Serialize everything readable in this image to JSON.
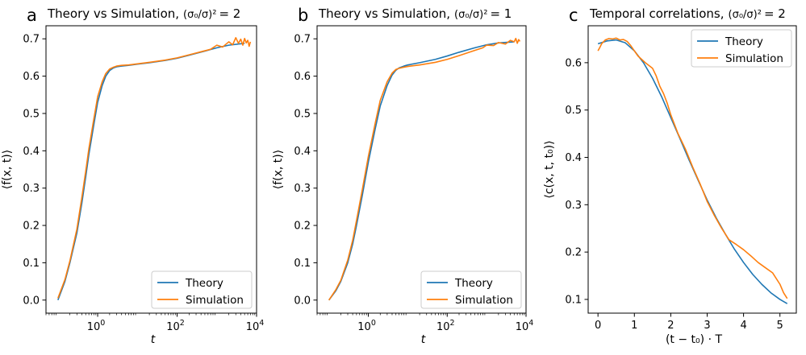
{
  "figure": {
    "colors": {
      "theory": "#1f77b4",
      "simulation": "#ff7f0e"
    }
  },
  "chart_data": [
    {
      "type": "line",
      "panel_letter": "a",
      "title_text": "Theory vs Simulation,",
      "title_math_lhs": "(σ₀/σ)²",
      "title_math_rhs": "= 2",
      "xlabel": "t",
      "ylabel": "⟨f(x, t)⟩",
      "xscale": "log",
      "xlim": [
        0.05,
        10000
      ],
      "ylim": [
        -0.035,
        0.735
      ],
      "x_ticks": [
        1,
        100,
        10000
      ],
      "x_tick_labels": [
        [
          "10",
          "0"
        ],
        [
          "10",
          "2"
        ],
        [
          "10",
          "4"
        ]
      ],
      "y_ticks": [
        0.0,
        0.1,
        0.2,
        0.3,
        0.4,
        0.5,
        0.6,
        0.7
      ],
      "y_tick_labels": [
        "0.0",
        "0.1",
        "0.2",
        "0.3",
        "0.4",
        "0.5",
        "0.6",
        "0.7"
      ],
      "legend": {
        "location": "lower right",
        "entries": [
          "Theory",
          "Simulation"
        ]
      },
      "series": [
        {
          "name": "Theory",
          "x": [
            0.1,
            0.15,
            0.2,
            0.3,
            0.4,
            0.5,
            0.6,
            0.8,
            1.0,
            1.3,
            1.6,
            2,
            2.5,
            3,
            4,
            6,
            10,
            20,
            50,
            100,
            200,
            500,
            1000,
            2000,
            5000
          ],
          "y": [
            0.0,
            0.05,
            0.1,
            0.18,
            0.26,
            0.33,
            0.39,
            0.47,
            0.53,
            0.575,
            0.6,
            0.615,
            0.622,
            0.625,
            0.627,
            0.629,
            0.632,
            0.636,
            0.642,
            0.648,
            0.656,
            0.667,
            0.676,
            0.683,
            0.688
          ]
        },
        {
          "name": "Simulation",
          "x": [
            0.1,
            0.15,
            0.2,
            0.3,
            0.4,
            0.5,
            0.6,
            0.8,
            1.0,
            1.3,
            1.6,
            2,
            2.5,
            3,
            4,
            6,
            10,
            20,
            50,
            100,
            200,
            500,
            700,
            1000,
            1400,
            2000,
            2500,
            3000,
            3500,
            4000,
            4500,
            5000,
            5500,
            6000,
            6500,
            7000
          ],
          "y": [
            0.005,
            0.055,
            0.105,
            0.19,
            0.275,
            0.345,
            0.405,
            0.485,
            0.545,
            0.585,
            0.607,
            0.619,
            0.624,
            0.627,
            0.629,
            0.63,
            0.633,
            0.637,
            0.643,
            0.649,
            0.657,
            0.668,
            0.672,
            0.683,
            0.678,
            0.692,
            0.684,
            0.703,
            0.688,
            0.699,
            0.683,
            0.701,
            0.689,
            0.696,
            0.68,
            0.692
          ]
        }
      ]
    },
    {
      "type": "line",
      "panel_letter": "b",
      "title_text": "Theory vs Simulation,",
      "title_math_lhs": "(σ₀/σ)²",
      "title_math_rhs": "= 1",
      "xlabel": "t",
      "ylabel": "⟨f(x, t)⟩",
      "xscale": "log",
      "xlim": [
        0.05,
        10000
      ],
      "ylim": [
        -0.035,
        0.735
      ],
      "x_ticks": [
        1,
        100,
        10000
      ],
      "x_tick_labels": [
        [
          "10",
          "0"
        ],
        [
          "10",
          "2"
        ],
        [
          "10",
          "4"
        ]
      ],
      "y_ticks": [
        0.0,
        0.1,
        0.2,
        0.3,
        0.4,
        0.5,
        0.6,
        0.7
      ],
      "y_tick_labels": [
        "0.0",
        "0.1",
        "0.2",
        "0.3",
        "0.4",
        "0.5",
        "0.6",
        "0.7"
      ],
      "legend": {
        "location": "lower right",
        "entries": [
          "Theory",
          "Simulation"
        ]
      },
      "series": [
        {
          "name": "Theory",
          "x": [
            0.1,
            0.15,
            0.2,
            0.3,
            0.4,
            0.5,
            0.7,
            1.0,
            1.5,
            2,
            3,
            4,
            5,
            6,
            8,
            10,
            20,
            50,
            100,
            200,
            500,
            1000,
            2000,
            5000
          ],
          "y": [
            0.0,
            0.025,
            0.05,
            0.1,
            0.15,
            0.2,
            0.28,
            0.37,
            0.46,
            0.52,
            0.575,
            0.603,
            0.616,
            0.622,
            0.627,
            0.63,
            0.636,
            0.645,
            0.654,
            0.664,
            0.676,
            0.684,
            0.689,
            0.692
          ]
        },
        {
          "name": "Simulation",
          "x": [
            0.1,
            0.15,
            0.2,
            0.3,
            0.4,
            0.5,
            0.7,
            1.0,
            1.5,
            2,
            3,
            4,
            5,
            6,
            8,
            10,
            20,
            50,
            100,
            200,
            500,
            800,
            1000,
            1500,
            2000,
            3000,
            4000,
            5000,
            5500,
            6000,
            6500,
            7000
          ],
          "y": [
            0.0,
            0.028,
            0.053,
            0.107,
            0.16,
            0.213,
            0.295,
            0.385,
            0.475,
            0.535,
            0.585,
            0.608,
            0.618,
            0.621,
            0.624,
            0.626,
            0.63,
            0.637,
            0.645,
            0.655,
            0.669,
            0.676,
            0.683,
            0.682,
            0.69,
            0.686,
            0.696,
            0.692,
            0.701,
            0.688,
            0.698,
            0.693
          ]
        }
      ]
    },
    {
      "type": "line",
      "panel_letter": "c",
      "title_text": "Temporal correlations,",
      "title_math_lhs": "(σ₀/σ)²",
      "title_math_rhs": "= 2",
      "xlabel": "(t − t₀) · T",
      "ylabel": "⟨c(x, t, t₀)⟩",
      "xscale": "linear",
      "xlim": [
        -0.27,
        5.45
      ],
      "ylim": [
        0.071,
        0.678
      ],
      "x_ticks": [
        0,
        1,
        2,
        3,
        4,
        5
      ],
      "x_tick_labels": [
        "0",
        "1",
        "2",
        "3",
        "4",
        "5"
      ],
      "y_ticks": [
        0.1,
        0.2,
        0.3,
        0.4,
        0.5,
        0.6
      ],
      "y_tick_labels": [
        "0.1",
        "0.2",
        "0.3",
        "0.4",
        "0.5",
        "0.6"
      ],
      "legend": {
        "location": "upper right",
        "entries": [
          "Theory",
          "Simulation"
        ]
      },
      "series": [
        {
          "name": "Theory",
          "x": [
            0.0,
            0.25,
            0.5,
            0.75,
            1.0,
            1.25,
            1.5,
            1.75,
            2.0,
            2.25,
            2.5,
            2.75,
            3.0,
            3.25,
            3.5,
            3.75,
            4.0,
            4.25,
            4.5,
            4.75,
            5.0,
            5.2
          ],
          "y": [
            0.64,
            0.646,
            0.648,
            0.642,
            0.625,
            0.6,
            0.567,
            0.528,
            0.484,
            0.44,
            0.395,
            0.352,
            0.31,
            0.272,
            0.238,
            0.206,
            0.178,
            0.153,
            0.132,
            0.114,
            0.1,
            0.091
          ]
        },
        {
          "name": "Simulation",
          "x": [
            0.0,
            0.05,
            0.1,
            0.2,
            0.3,
            0.4,
            0.5,
            0.6,
            0.7,
            0.8,
            0.9,
            1.0,
            1.1,
            1.2,
            1.3,
            1.4,
            1.5,
            1.6,
            1.7,
            1.8,
            1.9,
            2.0,
            2.2,
            2.4,
            2.6,
            2.8,
            3.0,
            3.2,
            3.4,
            3.6,
            3.8,
            4.0,
            4.2,
            4.4,
            4.6,
            4.8,
            5.0,
            5.1,
            5.2
          ],
          "y": [
            0.625,
            0.632,
            0.64,
            0.648,
            0.651,
            0.65,
            0.652,
            0.648,
            0.649,
            0.645,
            0.636,
            0.625,
            0.614,
            0.607,
            0.6,
            0.594,
            0.588,
            0.572,
            0.55,
            0.535,
            0.515,
            0.49,
            0.45,
            0.418,
            0.38,
            0.345,
            0.307,
            0.277,
            0.25,
            0.226,
            0.216,
            0.205,
            0.192,
            0.178,
            0.167,
            0.156,
            0.132,
            0.114,
            0.102
          ]
        }
      ]
    }
  ]
}
